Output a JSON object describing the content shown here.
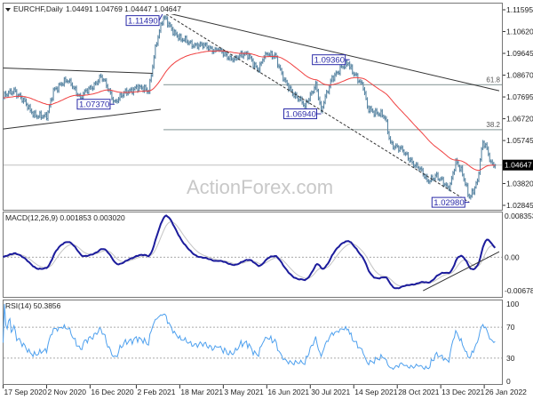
{
  "colors": {
    "bars": "#5a86a3",
    "moving_average": "#f04040",
    "macd_line": "#1c1c9c",
    "signal_line": "#c4c4c4",
    "rsi_line": "#4ea0ee",
    "annotation": "#2a2aa8",
    "trendline": "#333333",
    "fib_line": "#9aa8a8",
    "current_price_bg": "#000000"
  },
  "watermark": "ActionForex.com",
  "chart_data": [
    {
      "type": "ohlc",
      "title": "EURCHF,Daily",
      "ohlc_readout": "1.04491 1.04769 1.04447 1.04647",
      "ylim": [
        1.02845,
        1.11595
      ],
      "y_ticks": [
        "1.11595",
        "1.10620",
        "1.09645",
        "1.08670",
        "1.07695",
        "1.06720",
        "1.05745",
        "1.03820",
        "1.02845"
      ],
      "current_price": "1.04647",
      "x_ticks": [
        "17 Sep 2020",
        "2 Nov 2020",
        "16 Dec 2020",
        "2 Feb 2021",
        "18 Mar 2021",
        "3 May 2021",
        "16 Jun 2021",
        "30 Jul 2021",
        "14 Sep 2021",
        "28 Oct 2021",
        "13 Dec 2021",
        "26 Jan 2022"
      ],
      "x_tick_dates": [
        "2020-09-17",
        "2020-11-02",
        "2020-12-16",
        "2021-02-02",
        "2021-03-18",
        "2021-05-03",
        "2021-06-16",
        "2021-07-30",
        "2021-09-14",
        "2021-10-28",
        "2021-12-13",
        "2022-01-26"
      ],
      "close_anchors": [
        {
          "date": "2020-09-17",
          "close": 1.0765
        },
        {
          "date": "2020-09-29",
          "close": 1.0805
        },
        {
          "date": "2020-10-16",
          "close": 1.07
        },
        {
          "date": "2020-11-02",
          "close": 1.0672
        },
        {
          "date": "2020-11-09",
          "close": 1.0805
        },
        {
          "date": "2020-11-25",
          "close": 1.0845
        },
        {
          "date": "2020-12-07",
          "close": 1.0765
        },
        {
          "date": "2020-12-28",
          "close": 1.086
        },
        {
          "date": "2021-01-11",
          "close": 1.0752
        },
        {
          "date": "2021-02-02",
          "close": 1.0817
        },
        {
          "date": "2021-02-15",
          "close": 1.079
        },
        {
          "date": "2021-02-22",
          "close": 1.1
        },
        {
          "date": "2021-03-02",
          "close": 1.1124
        },
        {
          "date": "2021-03-19",
          "close": 1.1024
        },
        {
          "date": "2021-04-07",
          "close": 1.1
        },
        {
          "date": "2021-04-27",
          "close": 1.098
        },
        {
          "date": "2021-05-07",
          "close": 1.094
        },
        {
          "date": "2021-05-14",
          "close": 1.095
        },
        {
          "date": "2021-05-28",
          "close": 1.0957
        },
        {
          "date": "2021-06-08",
          "close": 1.0885
        },
        {
          "date": "2021-06-15",
          "close": 1.0964
        },
        {
          "date": "2021-06-24",
          "close": 1.096
        },
        {
          "date": "2021-07-02",
          "close": 1.0845
        },
        {
          "date": "2021-07-26",
          "close": 1.0726
        },
        {
          "date": "2021-08-05",
          "close": 1.0833
        },
        {
          "date": "2021-08-11",
          "close": 1.0705
        },
        {
          "date": "2021-08-23",
          "close": 1.086
        },
        {
          "date": "2021-09-08",
          "close": 1.092
        },
        {
          "date": "2021-09-15",
          "close": 1.087
        },
        {
          "date": "2021-09-23",
          "close": 1.0805
        },
        {
          "date": "2021-09-28",
          "close": 1.0726
        },
        {
          "date": "2021-10-15",
          "close": 1.0674
        },
        {
          "date": "2021-10-21",
          "close": 1.0567
        },
        {
          "date": "2021-11-05",
          "close": 1.0515
        },
        {
          "date": "2021-11-19",
          "close": 1.0447
        },
        {
          "date": "2021-11-29",
          "close": 1.0395
        },
        {
          "date": "2021-12-07",
          "close": 1.0419
        },
        {
          "date": "2021-12-21",
          "close": 1.0356
        },
        {
          "date": "2021-12-28",
          "close": 1.0487
        },
        {
          "date": "2022-01-04",
          "close": 1.042
        },
        {
          "date": "2022-01-11",
          "close": 1.032
        },
        {
          "date": "2022-01-19",
          "close": 1.0395
        },
        {
          "date": "2022-01-25",
          "close": 1.0567
        },
        {
          "date": "2022-01-28",
          "close": 1.0539
        },
        {
          "date": "2022-02-02",
          "close": 1.048
        },
        {
          "date": "2022-02-07",
          "close": 1.04647
        }
      ],
      "annotations": [
        {
          "text": "1.11490",
          "date": "2021-03-02",
          "price": 1.1149
        },
        {
          "text": "1.07370",
          "date": "2021-01-11",
          "price": 1.0737
        },
        {
          "text": "1.06940",
          "date": "2021-08-11",
          "price": 1.0694
        },
        {
          "text": "1.09360",
          "date": "2021-09-09",
          "price": 1.0936
        },
        {
          "text": "1.02980",
          "date": "2022-01-11",
          "price": 1.0298
        }
      ],
      "trendlines": [
        {
          "style": "solid",
          "start": {
            "date": "2020-09-17",
            "price": 1.0899
          },
          "end": {
            "date": "2021-02-18",
            "price": 1.0875
          }
        },
        {
          "style": "solid",
          "start": {
            "date": "2020-09-17",
            "price": 1.0626
          },
          "end": {
            "date": "2021-02-26",
            "price": 1.0714
          }
        },
        {
          "style": "solid",
          "start": {
            "date": "2021-03-02",
            "price": 1.1149
          },
          "end": {
            "date": "2022-02-10",
            "price": 1.0797
          }
        },
        {
          "style": "dashed",
          "start": {
            "date": "2021-03-04",
            "price": 1.114
          },
          "end": {
            "date": "2022-01-11",
            "price": 1.0298
          }
        }
      ],
      "fib_levels": [
        {
          "label": "61.8",
          "price": 1.0824,
          "from": "2021-03-02"
        },
        {
          "label": "38.2",
          "price": 1.0623,
          "from": "2021-03-02"
        }
      ],
      "moving_average_period": 55
    },
    {
      "type": "line",
      "title": "MACD(12,26,9) 0.001853 0.003020",
      "ylim": [
        -0.006788,
        0.008353
      ],
      "y_ticks": [
        "0.008353",
        "0.00",
        "-0.006788"
      ],
      "zero_line": true,
      "trendline": {
        "start": {
          "date": "2021-11-24",
          "value": -0.0068
        },
        "end": {
          "date": "2022-02-10",
          "value": 0.0011
        }
      }
    },
    {
      "type": "line",
      "title": "RSI(14) 50.3856",
      "ylim": [
        0,
        100
      ],
      "y_ticks": [
        "100",
        "70",
        "30",
        "0"
      ],
      "levels": [
        70,
        30
      ]
    }
  ]
}
